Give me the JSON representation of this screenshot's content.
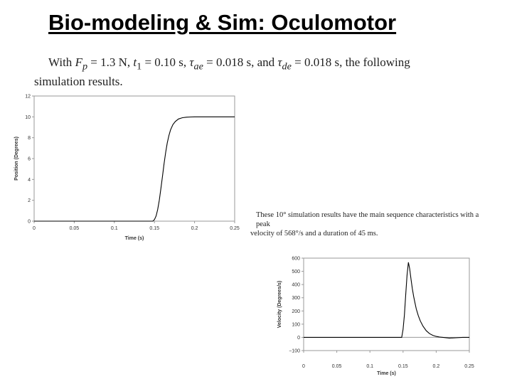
{
  "slide": {
    "title": "Bio-modeling & Sim: Oculomotor",
    "intro": {
      "line1_prefix": "With ",
      "fp_sym": "F",
      "fp_sub": "p",
      "fp_val": " = 1.3 N, ",
      "t1_sym": "t",
      "t1_sub": "1",
      "t1_val": " = 0.10 s, ",
      "tau_sym": "τ",
      "tau_ae_sub": "ae",
      "tau_ae_val": " = 0.018 s, and ",
      "tau_de_sub": "de",
      "tau_de_val": " = 0.018 s, the following",
      "line2": "simulation results."
    },
    "note": {
      "line1": "These 10° simulation results have the main sequence characteristics with a peak",
      "line2": "velocity of 568°/s and a duration of 45 ms."
    }
  },
  "chart_data": [
    {
      "type": "line",
      "xlabel": "Time (s)",
      "ylabel": "Position (Degrees)",
      "xlim": [
        0,
        0.25
      ],
      "ylim": [
        0,
        12
      ],
      "x_ticks": [
        "0",
        "0.05",
        "0.1",
        "0.15",
        "0.2",
        "0.25"
      ],
      "y_ticks": [
        "0",
        "2",
        "4",
        "6",
        "8",
        "10",
        "12"
      ],
      "grid": false,
      "series": [
        {
          "color": "#000000",
          "x": [
            0,
            0.148,
            0.15,
            0.152,
            0.154,
            0.156,
            0.158,
            0.16,
            0.162,
            0.164,
            0.166,
            0.168,
            0.17,
            0.173,
            0.176,
            0.18,
            0.185,
            0.19,
            0.195,
            0.2,
            0.21,
            0.22,
            0.23,
            0.24,
            0.25
          ],
          "y": [
            0,
            0,
            0.15,
            0.5,
            1.1,
            2.0,
            3.1,
            4.3,
            5.5,
            6.6,
            7.5,
            8.2,
            8.75,
            9.25,
            9.55,
            9.8,
            9.92,
            9.97,
            9.99,
            10.0,
            10.0,
            10.0,
            10.0,
            10.0,
            10.0
          ]
        }
      ]
    },
    {
      "type": "line",
      "xlabel": "Time (s)",
      "ylabel": "Velocity (Degrees/s)",
      "xlim": [
        0,
        0.25
      ],
      "ylim": [
        -100,
        600
      ],
      "x_ticks": [
        "0",
        "0.05",
        "0.1",
        "0.15",
        "0.2",
        "0.25"
      ],
      "y_ticks": [
        "−100",
        "0",
        "100",
        "200",
        "300",
        "400",
        "500",
        "600"
      ],
      "grid": false,
      "series": [
        {
          "color": "#000000",
          "x": [
            0,
            0.148,
            0.15,
            0.152,
            0.154,
            0.156,
            0.158,
            0.16,
            0.162,
            0.164,
            0.166,
            0.168,
            0.17,
            0.173,
            0.176,
            0.18,
            0.185,
            0.19,
            0.195,
            0.2,
            0.205,
            0.21,
            0.22,
            0.23,
            0.24,
            0.25
          ],
          "y": [
            0,
            0,
            60,
            170,
            320,
            470,
            568,
            520,
            440,
            370,
            310,
            260,
            215,
            165,
            125,
            85,
            50,
            28,
            15,
            7,
            3,
            0,
            -5,
            -3,
            0,
            0
          ]
        }
      ]
    }
  ]
}
